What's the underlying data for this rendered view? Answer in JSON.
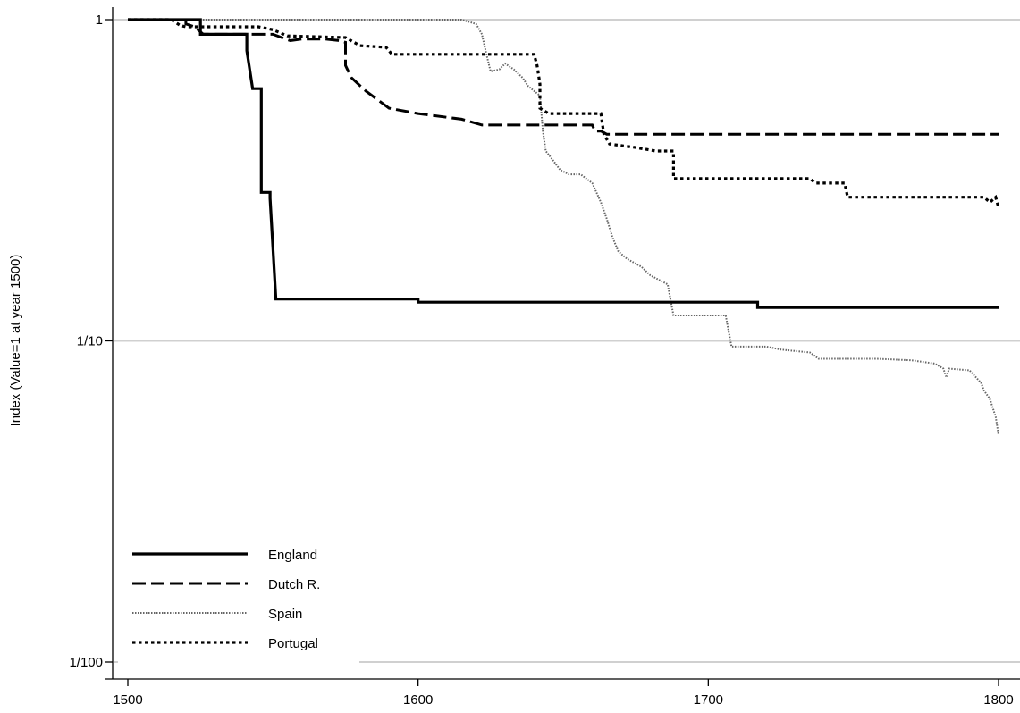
{
  "chart_data": {
    "type": "line",
    "ylabel": "Index (Value=1 at year 1500)",
    "xlabel": "",
    "xlim": [
      1500,
      1800
    ],
    "ylim": [
      0.01,
      1
    ],
    "y_scale": "log",
    "x_ticks": [
      {
        "value": 1500,
        "label": "1500"
      },
      {
        "value": 1600,
        "label": "1600"
      },
      {
        "value": 1700,
        "label": "1700"
      },
      {
        "value": 1800,
        "label": "1800"
      }
    ],
    "y_ticks": [
      {
        "value": 1,
        "label": "1"
      },
      {
        "value": 0.1,
        "label": "1/10"
      },
      {
        "value": 0.01,
        "label": "1/100"
      }
    ],
    "grid": "horizontal",
    "legend_position": "bottom-left",
    "series": [
      {
        "name": "England",
        "style": "solid",
        "color": "#000000",
        "points": [
          [
            1500,
            1
          ],
          [
            1525,
            1
          ],
          [
            1525,
            0.9
          ],
          [
            1541,
            0.9
          ],
          [
            1541,
            0.8
          ],
          [
            1543,
            0.61
          ],
          [
            1546,
            0.61
          ],
          [
            1546,
            0.29
          ],
          [
            1549,
            0.29
          ],
          [
            1549,
            0.278
          ],
          [
            1551,
            0.135
          ],
          [
            1600,
            0.135
          ],
          [
            1600,
            0.132
          ],
          [
            1717,
            0.132
          ],
          [
            1717,
            0.127
          ],
          [
            1800,
            0.127
          ]
        ]
      },
      {
        "name": "Dutch R.",
        "style": "dashed",
        "color": "#000000",
        "points": [
          [
            1500,
            1
          ],
          [
            1520,
            1
          ],
          [
            1520,
            0.97
          ],
          [
            1523,
            0.95
          ],
          [
            1526,
            0.9
          ],
          [
            1550,
            0.9
          ],
          [
            1553,
            0.88
          ],
          [
            1556,
            0.86
          ],
          [
            1560,
            0.87
          ],
          [
            1568,
            0.87
          ],
          [
            1573,
            0.86
          ],
          [
            1575,
            0.85
          ],
          [
            1575,
            0.72
          ],
          [
            1577,
            0.66
          ],
          [
            1582,
            0.6
          ],
          [
            1590,
            0.53
          ],
          [
            1600,
            0.51
          ],
          [
            1615,
            0.49
          ],
          [
            1622,
            0.47
          ],
          [
            1640,
            0.47
          ],
          [
            1660,
            0.47
          ],
          [
            1661,
            0.45
          ],
          [
            1663,
            0.45
          ],
          [
            1665,
            0.44
          ],
          [
            1800,
            0.44
          ]
        ]
      },
      {
        "name": "Spain",
        "style": "fine-dotted",
        "color": "#666666",
        "points": [
          [
            1500,
            1
          ],
          [
            1615,
            1
          ],
          [
            1620,
            0.97
          ],
          [
            1622,
            0.9
          ],
          [
            1624,
            0.75
          ],
          [
            1625,
            0.69
          ],
          [
            1628,
            0.7
          ],
          [
            1630,
            0.73
          ],
          [
            1633,
            0.7
          ],
          [
            1636,
            0.66
          ],
          [
            1638,
            0.62
          ],
          [
            1640,
            0.6
          ],
          [
            1642,
            0.58
          ],
          [
            1643,
            0.45
          ],
          [
            1644,
            0.39
          ],
          [
            1646,
            0.37
          ],
          [
            1649,
            0.34
          ],
          [
            1652,
            0.33
          ],
          [
            1656,
            0.33
          ],
          [
            1660,
            0.31
          ],
          [
            1663,
            0.27
          ],
          [
            1665,
            0.24
          ],
          [
            1667,
            0.21
          ],
          [
            1669,
            0.19
          ],
          [
            1672,
            0.18
          ],
          [
            1677,
            0.17
          ],
          [
            1680,
            0.16
          ],
          [
            1686,
            0.15
          ],
          [
            1688,
            0.12
          ],
          [
            1706,
            0.12
          ],
          [
            1708,
            0.096
          ],
          [
            1720,
            0.096
          ],
          [
            1725,
            0.094
          ],
          [
            1735,
            0.092
          ],
          [
            1738,
            0.088
          ],
          [
            1758,
            0.088
          ],
          [
            1770,
            0.087
          ],
          [
            1778,
            0.085
          ],
          [
            1781,
            0.082
          ],
          [
            1782,
            0.077
          ],
          [
            1783,
            0.082
          ],
          [
            1790,
            0.081
          ],
          [
            1794,
            0.074
          ],
          [
            1795,
            0.07
          ],
          [
            1797,
            0.066
          ],
          [
            1799,
            0.058
          ],
          [
            1800,
            0.051
          ]
        ]
      },
      {
        "name": "Portugal",
        "style": "dotted",
        "color": "#000000",
        "points": [
          [
            1500,
            1
          ],
          [
            1515,
            1
          ],
          [
            1518,
            0.96
          ],
          [
            1520,
            0.95
          ],
          [
            1545,
            0.95
          ],
          [
            1550,
            0.93
          ],
          [
            1555,
            0.89
          ],
          [
            1575,
            0.88
          ],
          [
            1580,
            0.83
          ],
          [
            1589,
            0.82
          ],
          [
            1591,
            0.78
          ],
          [
            1640,
            0.78
          ],
          [
            1641,
            0.72
          ],
          [
            1642,
            0.63
          ],
          [
            1642,
            0.53
          ],
          [
            1645,
            0.51
          ],
          [
            1655,
            0.51
          ],
          [
            1663,
            0.51
          ],
          [
            1664,
            0.44
          ],
          [
            1666,
            0.41
          ],
          [
            1675,
            0.4
          ],
          [
            1682,
            0.39
          ],
          [
            1688,
            0.39
          ],
          [
            1688,
            0.32
          ],
          [
            1735,
            0.32
          ],
          [
            1737,
            0.31
          ],
          [
            1747,
            0.31
          ],
          [
            1748,
            0.28
          ],
          [
            1795,
            0.28
          ],
          [
            1797,
            0.27
          ],
          [
            1799,
            0.28
          ],
          [
            1800,
            0.26
          ]
        ]
      }
    ]
  }
}
